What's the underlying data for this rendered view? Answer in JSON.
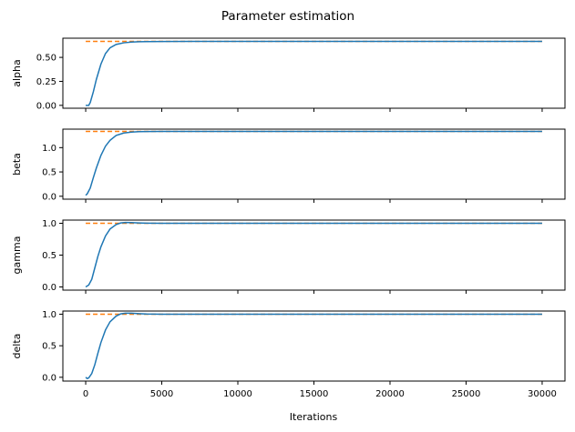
{
  "chart_data": {
    "type": "line",
    "title": "Parameter estimation",
    "xlabel": "Iterations",
    "xlim": [
      -1500,
      31500
    ],
    "x_ticks": [
      "0",
      "5000",
      "10000",
      "15000",
      "20000",
      "25000",
      "30000"
    ],
    "x_tick_values": [
      0,
      5000,
      10000,
      15000,
      20000,
      25000,
      30000
    ],
    "colors": {
      "estimate": "#1f77b4",
      "true_value": "#ff7f0e"
    },
    "panels": [
      {
        "ylabel": "alpha",
        "ylim": [
          -0.03,
          0.7
        ],
        "y_ticks": [
          "0.00",
          "0.25",
          "0.50"
        ],
        "y_tick_values": [
          0,
          0.25,
          0.5
        ],
        "true_value": 0.667,
        "estimate": {
          "x": [
            0,
            200,
            300,
            500,
            700,
            1000,
            1300,
            1600,
            2000,
            2500,
            3000,
            3500,
            4000,
            5000,
            7000,
            10000,
            15000,
            20000,
            25000,
            30000
          ],
          "y": [
            0.0,
            0.0,
            0.03,
            0.14,
            0.27,
            0.43,
            0.54,
            0.6,
            0.635,
            0.652,
            0.66,
            0.663,
            0.665,
            0.666,
            0.667,
            0.667,
            0.667,
            0.667,
            0.667,
            0.667
          ]
        }
      },
      {
        "ylabel": "beta",
        "ylim": [
          -0.06,
          1.38
        ],
        "y_ticks": [
          "0.0",
          "0.5",
          "1.0"
        ],
        "y_tick_values": [
          0,
          0.5,
          1.0
        ],
        "true_value": 1.333,
        "estimate": {
          "x": [
            0,
            100,
            300,
            500,
            700,
            1000,
            1300,
            1600,
            2000,
            2500,
            3000,
            3500,
            4000,
            5000,
            7000,
            10000,
            15000,
            20000,
            25000,
            30000
          ],
          "y": [
            0.02,
            0.05,
            0.17,
            0.38,
            0.58,
            0.84,
            1.03,
            1.15,
            1.25,
            1.3,
            1.32,
            1.328,
            1.331,
            1.333,
            1.333,
            1.333,
            1.333,
            1.333,
            1.333,
            1.333
          ]
        }
      },
      {
        "ylabel": "gamma",
        "ylim": [
          -0.05,
          1.05
        ],
        "y_ticks": [
          "0.0",
          "0.5",
          "1.0"
        ],
        "y_tick_values": [
          0,
          0.5,
          1.0
        ],
        "true_value": 1.0,
        "estimate": {
          "x": [
            0,
            200,
            400,
            600,
            800,
            1000,
            1300,
            1600,
            2000,
            2300,
            2600,
            3000,
            3500,
            4000,
            5000,
            7000,
            10000,
            15000,
            20000,
            25000,
            30000
          ],
          "y": [
            0.0,
            0.03,
            0.12,
            0.3,
            0.48,
            0.63,
            0.8,
            0.91,
            0.98,
            1.005,
            1.012,
            1.01,
            1.005,
            1.002,
            1.0,
            1.0,
            1.0,
            1.0,
            1.0,
            1.0,
            1.0
          ]
        }
      },
      {
        "ylabel": "delta",
        "ylim": [
          -0.06,
          1.05
        ],
        "y_ticks": [
          "0.0",
          "0.5",
          "1.0"
        ],
        "y_tick_values": [
          0,
          0.5,
          1.0
        ],
        "true_value": 1.0,
        "estimate": {
          "x": [
            0,
            100,
            200,
            400,
            600,
            800,
            1000,
            1300,
            1600,
            2000,
            2300,
            2600,
            3000,
            3500,
            4000,
            5000,
            7000,
            10000,
            15000,
            20000,
            25000,
            30000
          ],
          "y": [
            0.0,
            -0.02,
            -0.01,
            0.06,
            0.2,
            0.38,
            0.55,
            0.75,
            0.88,
            0.97,
            1.005,
            1.015,
            1.015,
            1.008,
            1.003,
            1.0,
            1.0,
            1.0,
            1.0,
            1.0,
            1.0,
            1.0
          ]
        }
      }
    ]
  }
}
